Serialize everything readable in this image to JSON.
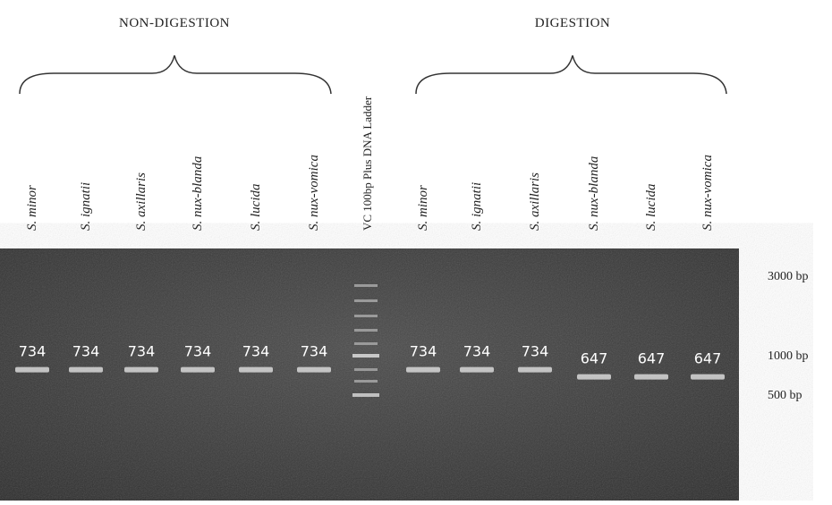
{
  "groups": [
    {
      "title": "NON-DIGESTION"
    },
    {
      "title": "DIGESTION"
    }
  ],
  "lanes": [
    {
      "label": "S. minor",
      "band": 734
    },
    {
      "label": "S. ignatii",
      "band": 734
    },
    {
      "label": "S. axillaris",
      "band": 734
    },
    {
      "label": "S. nux-blanda",
      "band": 734
    },
    {
      "label": "S. lucida",
      "band": 734
    },
    {
      "label": "S. nux-vomica",
      "band": 734
    },
    {
      "label": "VC 100bp Plus DNA Ladder"
    },
    {
      "label": "S. minor",
      "band": 734
    },
    {
      "label": "S. ignatii",
      "band": 734
    },
    {
      "label": "S. axillaris",
      "band": 734
    },
    {
      "label": "S. nux-blanda",
      "band": 647
    },
    {
      "label": "S. lucida",
      "band": 647
    },
    {
      "label": "S. nux-vomica",
      "band": 647
    }
  ],
  "markers": [
    {
      "value": 3000,
      "label": "3000 bp"
    },
    {
      "value": 1000,
      "label": "1000 bp"
    },
    {
      "value": 500,
      "label": "500 bp"
    }
  ]
}
